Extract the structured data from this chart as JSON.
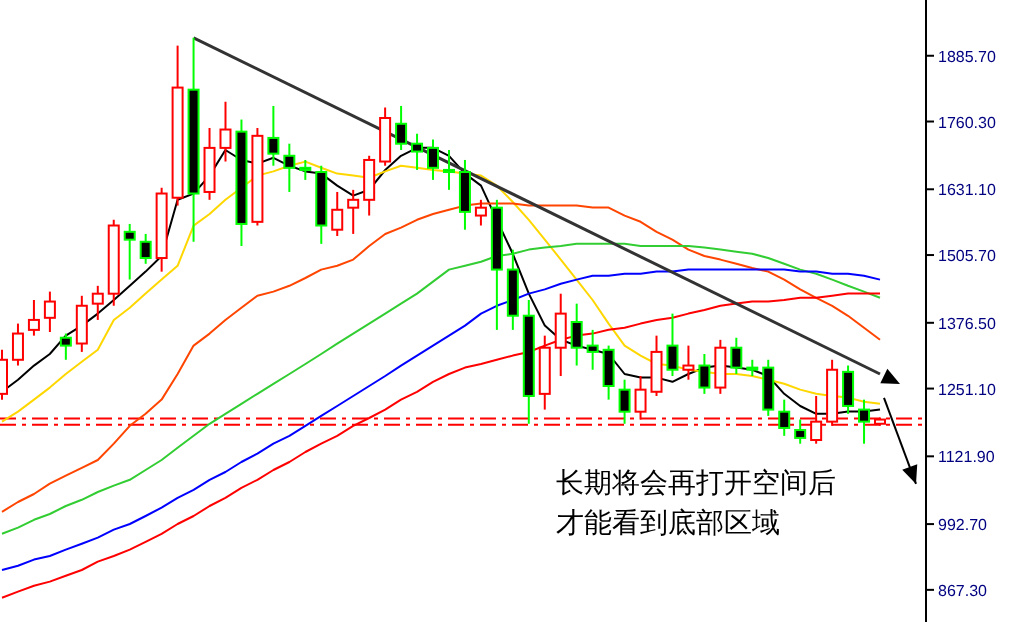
{
  "chart_data": {
    "type": "candlestick",
    "categories": [
      null,
      null,
      null,
      null,
      null,
      null,
      null,
      null,
      null,
      null,
      null,
      null,
      null,
      null,
      null,
      null,
      null,
      null,
      null,
      null,
      null,
      null,
      null,
      null,
      null,
      null,
      null,
      null,
      null,
      null,
      null,
      null,
      null,
      null,
      null,
      null,
      null,
      null,
      null,
      null,
      null,
      null,
      null,
      null,
      null,
      null,
      null,
      null,
      null,
      null,
      null,
      null,
      null,
      null,
      null,
      null
    ],
    "ohlc": [
      [
        1241,
        1325,
        1230,
        1306
      ],
      [
        1306,
        1375,
        1295,
        1356
      ],
      [
        1363,
        1420,
        1352,
        1382
      ],
      [
        1386,
        1436,
        1359,
        1417
      ],
      [
        1348,
        1356,
        1306,
        1333
      ],
      [
        1337,
        1428,
        1321,
        1409
      ],
      [
        1413,
        1447,
        1382,
        1432
      ],
      [
        1432,
        1573,
        1409,
        1562
      ],
      [
        1550,
        1565,
        1459,
        1535
      ],
      [
        1531,
        1546,
        1489,
        1500
      ],
      [
        1500,
        1634,
        1474,
        1623
      ],
      [
        1615,
        1905,
        1600,
        1825
      ],
      [
        1821,
        1920,
        1531,
        1623
      ],
      [
        1626,
        1748,
        1611,
        1710
      ],
      [
        1710,
        1798,
        1684,
        1745
      ],
      [
        1741,
        1764,
        1523,
        1565
      ],
      [
        1569,
        1748,
        1562,
        1733
      ],
      [
        1729,
        1790,
        1676,
        1699
      ],
      [
        1695,
        1718,
        1626,
        1672
      ],
      [
        1672,
        1687,
        1649,
        1668
      ],
      [
        1664,
        1676,
        1527,
        1562
      ],
      [
        1554,
        1626,
        1542,
        1592
      ],
      [
        1596,
        1630,
        1546,
        1611
      ],
      [
        1611,
        1695,
        1581,
        1687
      ],
      [
        1684,
        1787,
        1676,
        1767
      ],
      [
        1756,
        1790,
        1706,
        1718
      ],
      [
        1718,
        1737,
        1668,
        1703
      ],
      [
        1710,
        1726,
        1649,
        1672
      ],
      [
        1668,
        1706,
        1630,
        1664
      ],
      [
        1664,
        1687,
        1554,
        1588
      ],
      [
        1581,
        1611,
        1562,
        1596
      ],
      [
        1596,
        1611,
        1363,
        1478
      ],
      [
        1478,
        1516,
        1363,
        1390
      ],
      [
        1390,
        1420,
        1184,
        1237
      ],
      [
        1241,
        1352,
        1211,
        1329
      ],
      [
        1329,
        1432,
        1275,
        1394
      ],
      [
        1378,
        1413,
        1295,
        1329
      ],
      [
        1333,
        1363,
        1287,
        1321
      ],
      [
        1325,
        1333,
        1230,
        1256
      ],
      [
        1249,
        1268,
        1184,
        1207
      ],
      [
        1207,
        1275,
        1192,
        1249
      ],
      [
        1245,
        1352,
        1237,
        1321
      ],
      [
        1333,
        1394,
        1275,
        1287
      ],
      [
        1287,
        1333,
        1268,
        1295
      ],
      [
        1295,
        1317,
        1241,
        1253
      ],
      [
        1253,
        1344,
        1241,
        1329
      ],
      [
        1329,
        1348,
        1279,
        1291
      ],
      [
        1291,
        1306,
        1275,
        1289
      ],
      [
        1291,
        1306,
        1199,
        1211
      ],
      [
        1207,
        1230,
        1161,
        1176
      ],
      [
        1172,
        1192,
        1146,
        1157
      ],
      [
        1153,
        1237,
        1146,
        1188
      ],
      [
        1188,
        1306,
        1180,
        1287
      ],
      [
        1283,
        1295,
        1203,
        1218
      ],
      [
        1211,
        1230,
        1146,
        1188
      ],
      [
        1184,
        1196,
        1180,
        1192
      ]
    ],
    "colors": [
      "#ff0000",
      "#ff0000",
      "#ff0000",
      "#ff0000",
      "#00ff00",
      "#ff0000",
      "#ff0000",
      "#ff0000",
      "#00ff00",
      "#00ff00",
      "#ff0000",
      "#ff0000",
      "#00ff00",
      "#ff0000",
      "#ff0000",
      "#00ff00",
      "#ff0000",
      "#00ff00",
      "#00ff00",
      "#00ff00",
      "#00ff00",
      "#ff0000",
      "#ff0000",
      "#ff0000",
      "#ff0000",
      "#00ff00",
      "#00ff00",
      "#00ff00",
      "#00ff00",
      "#00ff00",
      "#ff0000",
      "#00ff00",
      "#00ff00",
      "#00ff00",
      "#ff0000",
      "#ff0000",
      "#00ff00",
      "#00ff00",
      "#00ff00",
      "#00ff00",
      "#ff0000",
      "#ff0000",
      "#00ff00",
      "#ff0000",
      "#00ff00",
      "#ff0000",
      "#00ff00",
      "#00ff00",
      "#00ff00",
      "#00ff00",
      "#00ff00",
      "#ff0000",
      "#ff0000",
      "#00ff00",
      "#00ff00",
      "#ff0000"
    ],
    "series": [
      {
        "type": "line",
        "color": "#000000",
        "values": [
          1245,
          1268,
          1295,
          1317,
          1352,
          1371,
          1394,
          1420,
          1447,
          1474,
          1504,
          1611,
          1623,
          1657,
          1706,
          1687,
          1680,
          1691,
          1676,
          1665,
          1661,
          1638,
          1619,
          1630,
          1668,
          1695,
          1710,
          1710,
          1695,
          1661,
          1638,
          1573,
          1508,
          1432,
          1371,
          1344,
          1333,
          1325,
          1317,
          1279,
          1272,
          1272,
          1264,
          1279,
          1291,
          1295,
          1291,
          1287,
          1275,
          1241,
          1218,
          1203,
          1203,
          1207,
          1207,
          1211
        ]
      },
      {
        "type": "line",
        "color": "#ffd700",
        "values": [
          1188,
          1207,
          1230,
          1253,
          1279,
          1302,
          1325,
          1382,
          1405,
          1432,
          1459,
          1485,
          1562,
          1584,
          1611,
          1634,
          1657,
          1665,
          1676,
          1684,
          1672,
          1661,
          1657,
          1653,
          1665,
          1676,
          1672,
          1668,
          1665,
          1661,
          1657,
          1638,
          1607,
          1573,
          1535,
          1497,
          1459,
          1420,
          1375,
          1333,
          1314,
          1298,
          1295,
          1287,
          1283,
          1279,
          1279,
          1275,
          1268,
          1260,
          1249,
          1241,
          1237,
          1234,
          1226,
          1222
        ]
      },
      {
        "type": "line",
        "color": "#ff4500",
        "values": [
          1016,
          1035,
          1050,
          1070,
          1085,
          1100,
          1115,
          1146,
          1180,
          1203,
          1230,
          1279,
          1333,
          1356,
          1382,
          1405,
          1428,
          1436,
          1447,
          1462,
          1478,
          1485,
          1497,
          1523,
          1546,
          1558,
          1573,
          1584,
          1592,
          1600,
          1604,
          1604,
          1604,
          1600,
          1600,
          1600,
          1600,
          1596,
          1596,
          1581,
          1569,
          1550,
          1535,
          1516,
          1504,
          1497,
          1489,
          1481,
          1474,
          1459,
          1440,
          1424,
          1409,
          1390,
          1367,
          1344
        ]
      },
      {
        "type": "line",
        "color": "#32cd32",
        "values": [
          974,
          986,
          1001,
          1012,
          1027,
          1039,
          1054,
          1066,
          1077,
          1096,
          1115,
          1138,
          1161,
          1184,
          1203,
          1222,
          1241,
          1260,
          1279,
          1298,
          1317,
          1337,
          1356,
          1375,
          1394,
          1413,
          1432,
          1455,
          1478,
          1485,
          1493,
          1504,
          1508,
          1516,
          1520,
          1523,
          1527,
          1527,
          1527,
          1527,
          1523,
          1523,
          1523,
          1523,
          1520,
          1516,
          1512,
          1508,
          1500,
          1489,
          1478,
          1470,
          1459,
          1447,
          1436,
          1424
        ]
      },
      {
        "type": "line",
        "color": "#0000ff",
        "values": [
          905,
          913,
          925,
          932,
          944,
          955,
          967,
          982,
          993,
          1008,
          1024,
          1043,
          1058,
          1077,
          1092,
          1111,
          1127,
          1146,
          1161,
          1180,
          1199,
          1218,
          1237,
          1256,
          1275,
          1295,
          1314,
          1333,
          1352,
          1371,
          1394,
          1409,
          1420,
          1432,
          1440,
          1451,
          1459,
          1466,
          1466,
          1470,
          1470,
          1474,
          1474,
          1478,
          1478,
          1478,
          1478,
          1478,
          1478,
          1478,
          1474,
          1474,
          1470,
          1470,
          1466,
          1459
        ]
      },
      {
        "type": "line",
        "color": "#ff0000",
        "values": [
          852,
          864,
          875,
          883,
          894,
          905,
          921,
          932,
          944,
          959,
          974,
          993,
          1008,
          1027,
          1043,
          1062,
          1077,
          1096,
          1111,
          1130,
          1146,
          1161,
          1180,
          1195,
          1211,
          1230,
          1245,
          1264,
          1279,
          1291,
          1298,
          1306,
          1314,
          1321,
          1333,
          1344,
          1352,
          1356,
          1363,
          1367,
          1375,
          1382,
          1386,
          1394,
          1401,
          1409,
          1413,
          1417,
          1417,
          1420,
          1424,
          1424,
          1428,
          1432,
          1432,
          1432
        ]
      },
      {
        "type": "line",
        "color": "#333333",
        "values": [
          null,
          null,
          null,
          null,
          null,
          null,
          null,
          null,
          null,
          null,
          null,
          null,
          1920,
          null,
          null,
          null,
          null,
          null,
          null,
          null,
          null,
          null,
          null,
          null,
          null,
          null,
          null,
          null,
          null,
          null,
          null,
          null,
          null,
          null,
          null,
          null,
          null,
          null,
          null,
          null,
          null,
          null,
          null,
          null,
          null,
          null,
          null,
          null,
          null,
          null,
          null,
          null,
          null,
          null,
          null,
          1279
        ]
      }
    ],
    "ylim": [
      806,
      1992
    ],
    "yticks": [
      {
        "value": 1885.7,
        "label": "1885.70"
      },
      {
        "value": 1760.3,
        "label": "1760.30"
      },
      {
        "value": 1631.1,
        "label": "1631.10"
      },
      {
        "value": 1505.7,
        "label": "1505.70"
      },
      {
        "value": 1376.5,
        "label": "1376.50"
      },
      {
        "value": 1251.1,
        "label": "1251.10"
      },
      {
        "value": 1121.9,
        "label": "1121.90"
      },
      {
        "value": 992.7,
        "label": "992.70"
      },
      {
        "value": 867.3,
        "label": "867.30"
      }
    ],
    "tick_labels": "y",
    "ref_lines": [
      {
        "axis": "y",
        "value": 1194,
        "color": "#ff0000",
        "line_style": "dashed"
      },
      {
        "axis": "y",
        "value": 1182,
        "color": "#ff0000",
        "line_style": "dashed"
      }
    ],
    "annotations": [
      "长期将会再打开空间后",
      "才能看到底部区域"
    ]
  }
}
